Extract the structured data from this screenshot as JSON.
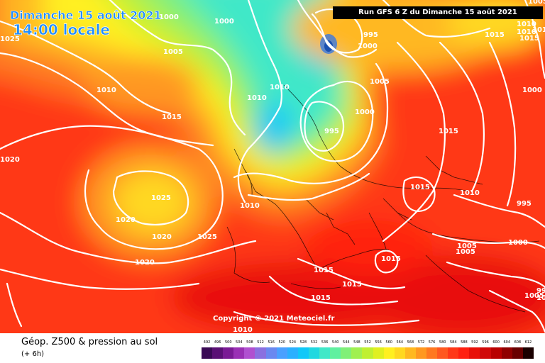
{
  "header": {
    "date_line": "Dimanche 15 août 2021",
    "time_line": "14:00 locale",
    "run_info": "Run GFS 6 Z du Dimanche 15 août 2021"
  },
  "footer": {
    "copyright": "Copyright © 2021 Meteociel.fr",
    "title": "Géop. Z500 & pression au sol",
    "subtitle": "(+ 6h)"
  },
  "legend": {
    "values": [
      "492",
      "496",
      "500",
      "504",
      "508",
      "512",
      "516",
      "520",
      "524",
      "528",
      "532",
      "536",
      "540",
      "544",
      "548",
      "552",
      "556",
      "560",
      "564",
      "568",
      "572",
      "576",
      "580",
      "584",
      "588",
      "592",
      "596",
      "600",
      "604",
      "608",
      "612"
    ],
    "colors": [
      "#3a0a55",
      "#5a1075",
      "#7a1a95",
      "#9a30b5",
      "#b050d0",
      "#8a70e0",
      "#6a88f0",
      "#4aa0ff",
      "#2ab0ff",
      "#10c8f8",
      "#20d8e0",
      "#40e8c8",
      "#60f0a0",
      "#80f078",
      "#a0f050",
      "#c0f030",
      "#e0f020",
      "#fff020",
      "#ffd820",
      "#ffb820",
      "#ff9820",
      "#ff7820",
      "#ff5820",
      "#ff3818",
      "#ff2010",
      "#e81008",
      "#d00808",
      "#b80000",
      "#900000",
      "#680000",
      "#1a0000"
    ]
  },
  "pressure_labels": [
    "1000",
    "1005",
    "1010",
    "1015",
    "1020",
    "1025",
    "995",
    "1025",
    "1020",
    "1020",
    "1025",
    "1020",
    "1015",
    "1015",
    "1015",
    "1010",
    "1005",
    "1000",
    "1000",
    "995",
    "1010",
    "1010",
    "1010",
    "1010",
    "1010",
    "1010",
    "1005",
    "1015",
    "1010",
    "1000",
    "995",
    "1015",
    "1015",
    "1015",
    "1015",
    "1020",
    "1000",
    "1000",
    "1005",
    "1005",
    "1010",
    "995",
    "1010",
    "1015",
    "1005"
  ]
}
